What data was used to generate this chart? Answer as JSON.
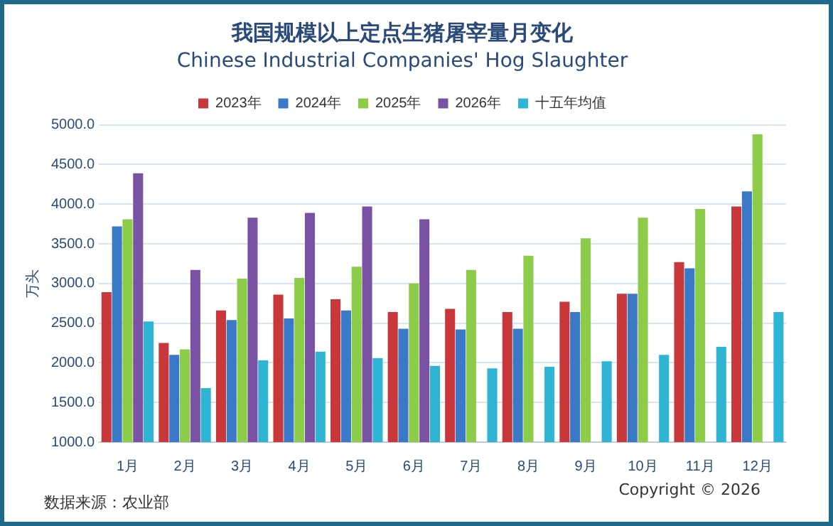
{
  "chart_data": {
    "type": "bar",
    "title": "我国规模以上定点生猪屠宰量月变化",
    "subtitle": "Chinese Industrial Companies' Hog Slaughter",
    "ylabel": "万头",
    "categories": [
      "1月",
      "2月",
      "3月",
      "4月",
      "5月",
      "6月",
      "7月",
      "8月",
      "9月",
      "10月",
      "11月",
      "12月"
    ],
    "series": [
      {
        "name": "2023年",
        "color": "#c8383a",
        "values": [
          2890,
          2250,
          2660,
          2860,
          2800,
          2640,
          2680,
          2640,
          2770,
          2870,
          3270,
          3970
        ]
      },
      {
        "name": "2024年",
        "color": "#3a78c8",
        "values": [
          3720,
          2100,
          2540,
          2560,
          2660,
          2430,
          2420,
          2430,
          2640,
          2870,
          3190,
          4160
        ]
      },
      {
        "name": "2025年",
        "color": "#8ccc48",
        "values": [
          3810,
          2170,
          3060,
          3070,
          3210,
          3000,
          3170,
          3350,
          3570,
          3830,
          3940,
          4880
        ]
      },
      {
        "name": "2026年",
        "color": "#7a52a4",
        "values": [
          4390,
          3170,
          3830,
          3890,
          3970,
          3810,
          null,
          null,
          null,
          null,
          null,
          null
        ]
      },
      {
        "name": "十五年均值",
        "color": "#30b4d4",
        "values": [
          2520,
          1680,
          2030,
          2140,
          2060,
          1960,
          1930,
          1950,
          2020,
          2100,
          2200,
          2640
        ]
      }
    ],
    "ylim": [
      1000,
      5000
    ],
    "yticks": [
      {
        "value": 1000,
        "label": "1000.0"
      },
      {
        "value": 1500,
        "label": "1500.0"
      },
      {
        "value": 2000,
        "label": "2000.0"
      },
      {
        "value": 2500,
        "label": "2500.0"
      },
      {
        "value": 3000,
        "label": "3000.0"
      },
      {
        "value": 3500,
        "label": "3500.0"
      },
      {
        "value": 4000,
        "label": "4000.0"
      },
      {
        "value": 4500,
        "label": "4500.0"
      },
      {
        "value": 5000,
        "label": "5000.0"
      }
    ],
    "grid": "y",
    "legend": "top",
    "annotations": [
      "数据来源：农业部",
      "Copyright © 2026"
    ]
  }
}
